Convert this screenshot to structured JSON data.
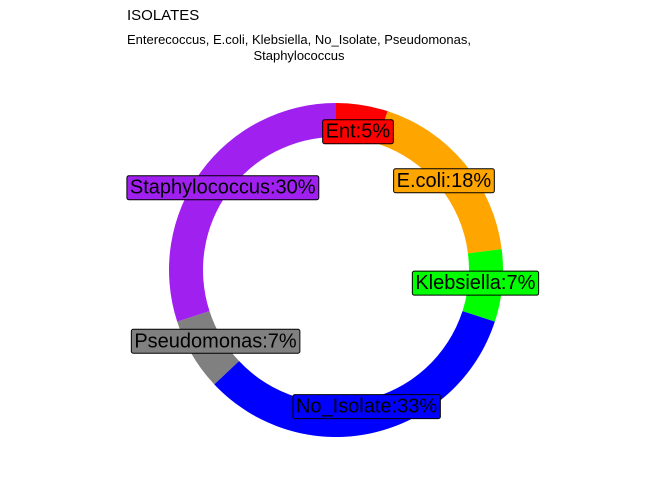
{
  "chart_data": {
    "type": "pie",
    "title": "ISOLATES",
    "subtitle_line1": "Enterecoccus, E.coli, Klebsiella, No_Isolate, Pseudomonas,",
    "subtitle_line2": "Staphylococcus",
    "slices": [
      {
        "name": "Enterecoccus",
        "value": 5,
        "label": "Ent:5%",
        "color": "#FF0000"
      },
      {
        "name": "E.coli",
        "value": 18,
        "label": "E.coli:18%",
        "color": "#FFA500"
      },
      {
        "name": "Klebsiella",
        "value": 7,
        "label": "Klebsiella:7%",
        "color": "#00FF00"
      },
      {
        "name": "No_Isolate",
        "value": 33,
        "label": "No_Isolate:33%",
        "color": "#0000FF"
      },
      {
        "name": "Pseudomonas",
        "value": 7,
        "label": "Pseudomonas:7%",
        "color": "#808080"
      },
      {
        "name": "Staphylococcus",
        "value": 30,
        "label": "Staphylococcus:30%",
        "color": "#A020F0"
      }
    ]
  }
}
